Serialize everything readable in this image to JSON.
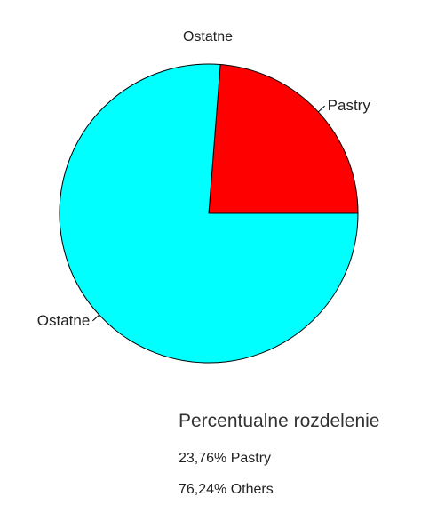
{
  "chart_data": {
    "type": "pie",
    "title": "Ostatne",
    "slices": [
      {
        "label": "Pastry",
        "value": 23.76,
        "color": "#ff0000"
      },
      {
        "label": "Ostatne",
        "value": 76.24,
        "color": "#00ffff"
      }
    ]
  },
  "summary": {
    "heading": "Percentualne rozdelenie",
    "line1": "23,76% Pastry",
    "line2": "76,24% Others"
  }
}
